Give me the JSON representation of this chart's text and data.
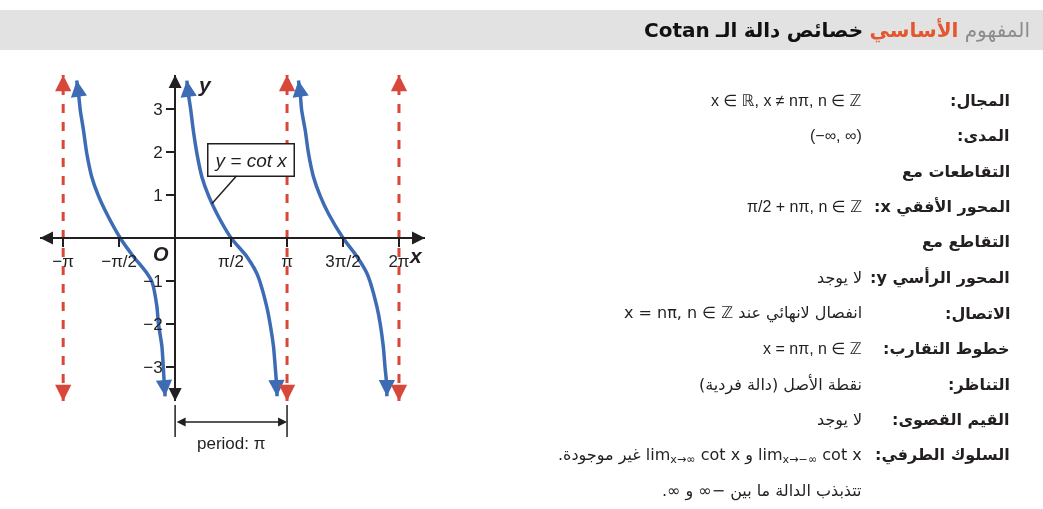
{
  "chart_data": {
    "type": "line",
    "title": "المفهوم الأساسي خصائص دالة الـ Cotan",
    "xlabel": "x",
    "ylabel": "y",
    "series": [
      {
        "color": "#3d6cb4",
        "x": [
          -2.76,
          -2.71,
          -2.66,
          -2.57,
          -2.48,
          -2.34,
          -2.15,
          -1.92,
          -1.54,
          -1.17,
          -0.79,
          -0.65,
          -0.51,
          -0.47,
          -0.37,
          -0.33,
          -0.3,
          -0.28,
          0,
          0.33,
          0.37,
          0.44,
          0.51,
          0.61,
          0.75,
          0.94,
          1.17,
          1.57,
          2.01,
          2.29,
          2.38,
          2.57,
          2.66,
          2.76,
          2.81,
          2.85,
          2.86,
          3.14,
          3.46,
          3.51,
          3.55,
          3.65,
          3.74,
          3.88,
          4.07,
          4.3,
          4.71,
          5.1,
          5.38,
          5.47,
          5.66,
          5.75,
          5.84,
          5.89,
          5.94,
          5.94
        ],
        "values": [
          3.67,
          3.37,
          2.98,
          2.51,
          1.98,
          1.43,
          0.98,
          0.57,
          0,
          -0.43,
          -0.82,
          -1.02,
          -1.6,
          -1.98,
          -2.53,
          -3.02,
          -3.46,
          -3.69,
          null,
          3.67,
          3.37,
          2.98,
          2.51,
          1.98,
          1.43,
          0.98,
          0.57,
          0,
          -0.43,
          -0.82,
          -1.02,
          -1.6,
          -1.98,
          -2.53,
          -3.02,
          -3.46,
          -3.69,
          null,
          3.67,
          3.37,
          2.98,
          2.51,
          1.98,
          1.43,
          0.98,
          0.57,
          0,
          -0.43,
          -0.82,
          -1.02,
          -1.6,
          -1.98,
          -2.53,
          -3.02,
          -3.46,
          -3.69
        ]
      }
    ],
    "xlim": [
      -3.79,
      7.01
    ],
    "ylim": [
      -3.8,
      3.8
    ],
    "xticks": [
      {
        "value": -3.14,
        "label": "−π"
      },
      {
        "value": -1.57,
        "label": "−π/2"
      },
      {
        "value": 1.57,
        "label": "π/2"
      },
      {
        "value": 3.14,
        "label": "π"
      },
      {
        "value": 4.71,
        "label": "3π/2"
      },
      {
        "value": 6.28,
        "label": "2π"
      }
    ],
    "yticks": [
      -3,
      -2,
      -1,
      1,
      2,
      3
    ],
    "ref_lines": [
      {
        "axis": "x",
        "value": -3.14,
        "color": "#d9473a",
        "line_style": "dashed"
      },
      {
        "axis": "x",
        "value": 3.14,
        "color": "#d9473a",
        "line_style": "dashed"
      },
      {
        "axis": "x",
        "value": 6.28,
        "color": "#d9473a",
        "line_style": "dashed"
      }
    ],
    "annotations": [
      {
        "text": "y = cot x",
        "x": 1.03,
        "y": 0.8
      },
      "O",
      "period: π",
      "المجال:",
      "x ∈ ℝ, x ≠ nπ, n ∈ ℤ",
      "المدى:",
      "(−∞, ∞)",
      "التقاطعات مع\nالمحور الأفقي x:",
      "π/2 + nπ, n ∈ ℤ",
      "التقاطع مع\nالمحور الرأسي y:",
      "لا يوجد",
      "الاتصال:",
      "انفصال لانهائي عند x = nπ, n ∈ ℤ",
      "خطوط التقارب:",
      "x = nπ, n ∈ ℤ",
      "التناظر:",
      "نقطة الأصل (دالة فردية)",
      "القيم القصوى:",
      "لا يوجد",
      "السلوك الطرفي:",
      "lim$_{x→−∞}$ cot x و lim$_{x→∞}$ cot x غير موجودة.\nتتذبذب الدالة ما بين −∞ و ∞."
    ]
  }
}
